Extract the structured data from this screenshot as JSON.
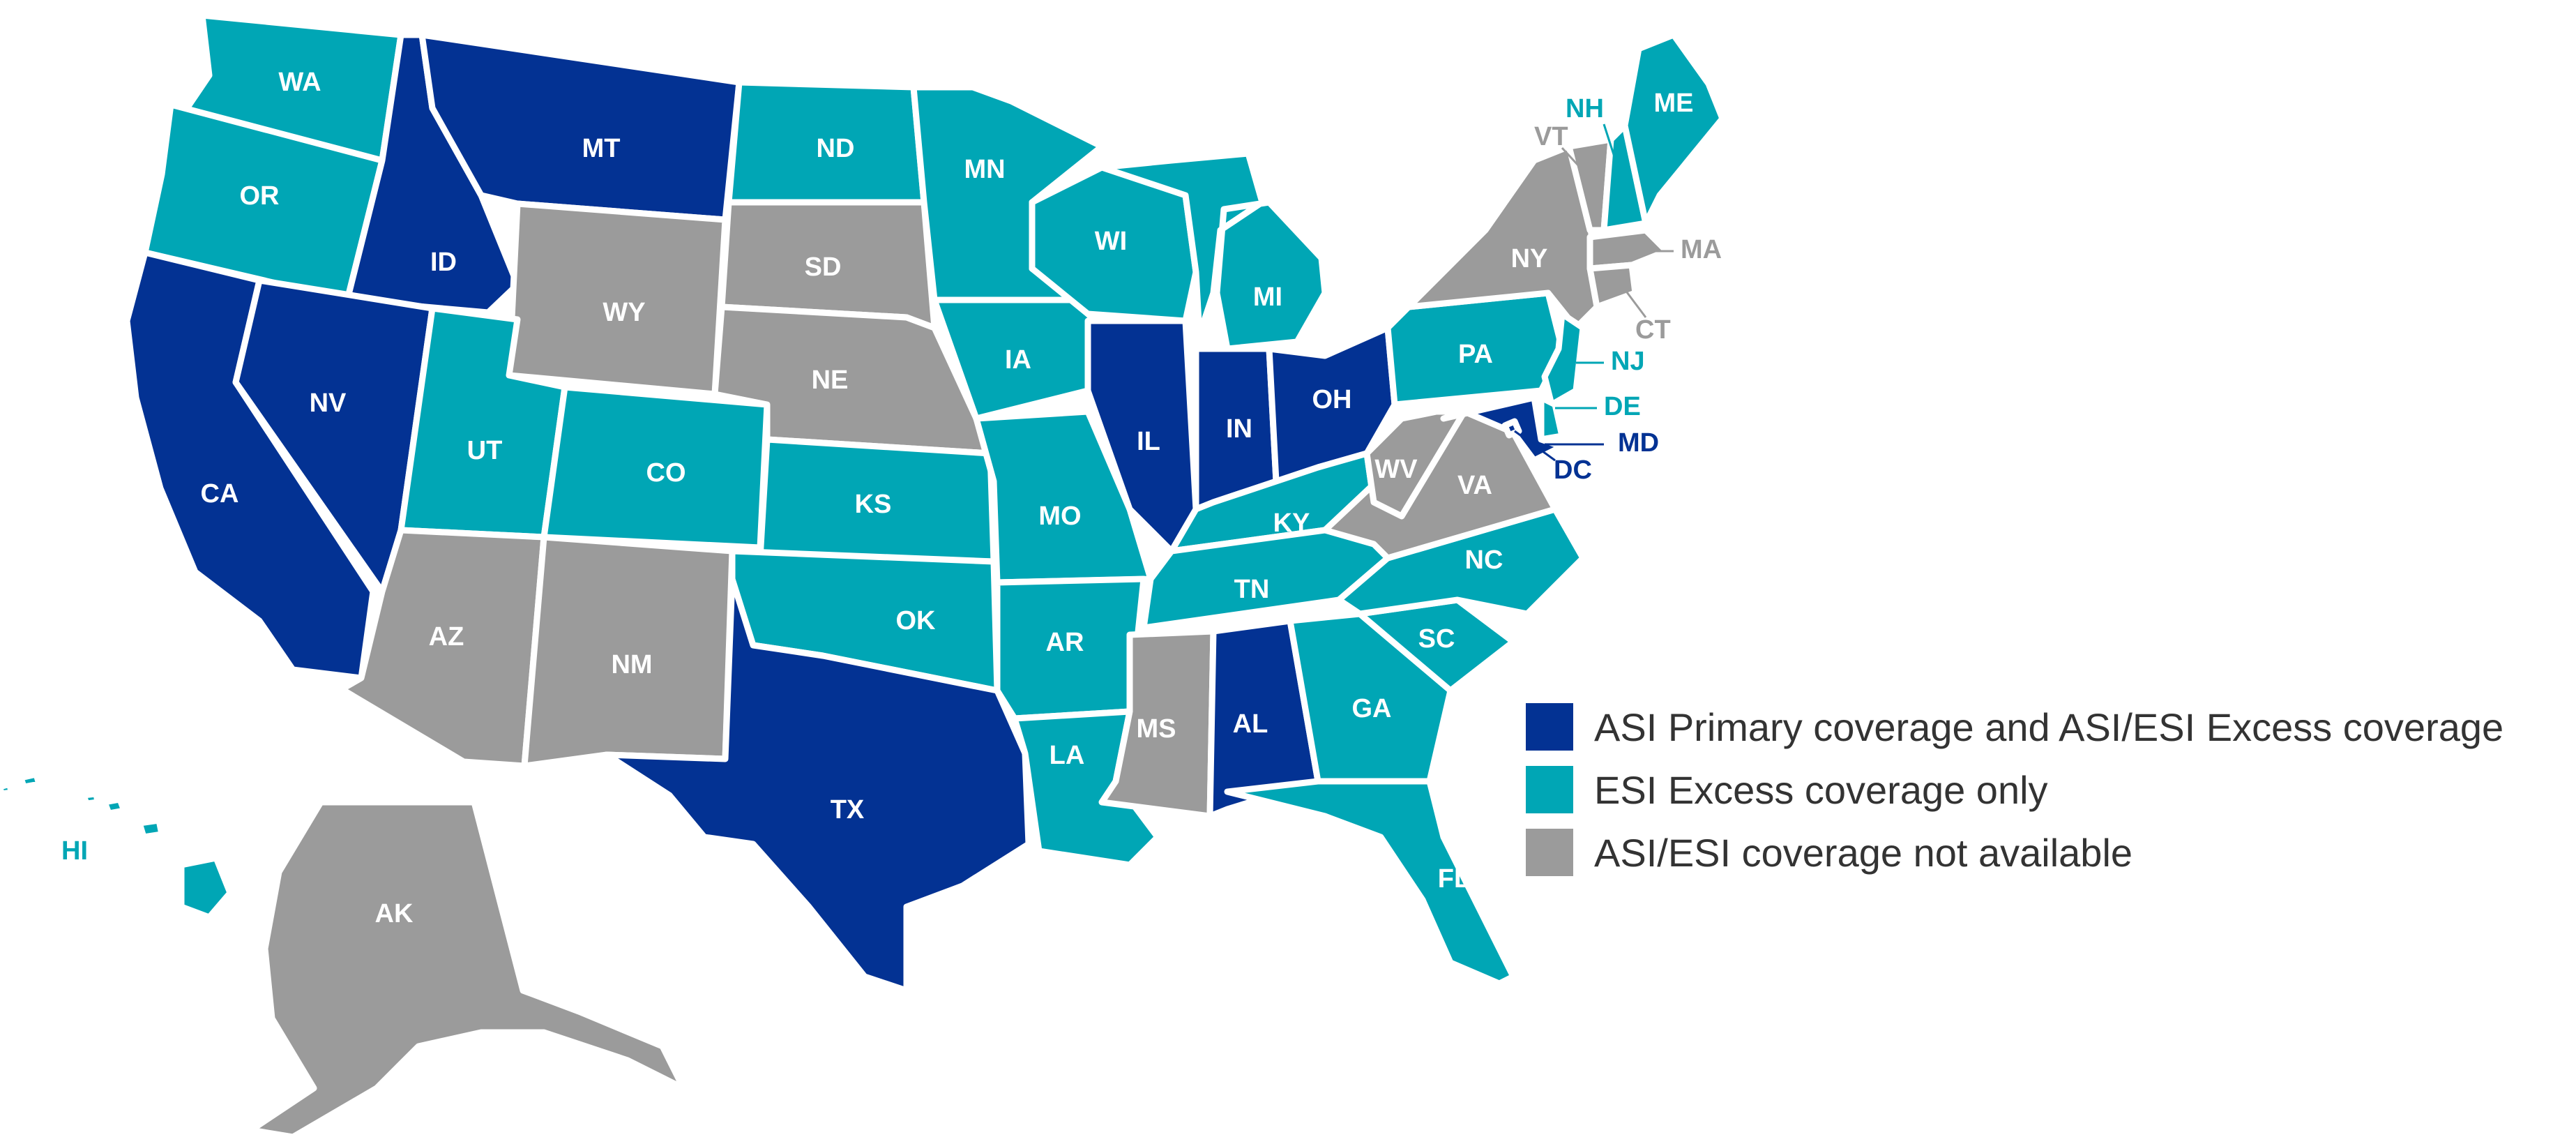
{
  "colors": {
    "primary": "#033293",
    "excess": "#00A6B5",
    "none": "#9B9B9B"
  },
  "legend": [
    {
      "key": "primary",
      "label": "ASI Primary coverage and ASI/ESI Excess coverage"
    },
    {
      "key": "excess",
      "label": "ESI Excess coverage only"
    },
    {
      "key": "none",
      "label": "ASI/ESI coverage not available"
    }
  ],
  "states": {
    "WA": {
      "label": "WA",
      "coverage": "excess"
    },
    "OR": {
      "label": "OR",
      "coverage": "excess"
    },
    "CA": {
      "label": "CA",
      "coverage": "primary"
    },
    "ID": {
      "label": "ID",
      "coverage": "primary"
    },
    "NV": {
      "label": "NV",
      "coverage": "primary"
    },
    "MT": {
      "label": "MT",
      "coverage": "primary"
    },
    "WY": {
      "label": "WY",
      "coverage": "none"
    },
    "UT": {
      "label": "UT",
      "coverage": "excess"
    },
    "AZ": {
      "label": "AZ",
      "coverage": "none"
    },
    "CO": {
      "label": "CO",
      "coverage": "excess"
    },
    "NM": {
      "label": "NM",
      "coverage": "none"
    },
    "ND": {
      "label": "ND",
      "coverage": "excess"
    },
    "SD": {
      "label": "SD",
      "coverage": "none"
    },
    "NE": {
      "label": "NE",
      "coverage": "none"
    },
    "KS": {
      "label": "KS",
      "coverage": "excess"
    },
    "OK": {
      "label": "OK",
      "coverage": "excess"
    },
    "TX": {
      "label": "TX",
      "coverage": "primary"
    },
    "MN": {
      "label": "MN",
      "coverage": "excess"
    },
    "IA": {
      "label": "IA",
      "coverage": "excess"
    },
    "MO": {
      "label": "MO",
      "coverage": "excess"
    },
    "AR": {
      "label": "AR",
      "coverage": "excess"
    },
    "LA": {
      "label": "LA",
      "coverage": "excess"
    },
    "WI": {
      "label": "WI",
      "coverage": "excess"
    },
    "IL": {
      "label": "IL",
      "coverage": "primary"
    },
    "MI": {
      "label": "MI",
      "coverage": "excess"
    },
    "IN": {
      "label": "IN",
      "coverage": "primary"
    },
    "OH": {
      "label": "OH",
      "coverage": "primary"
    },
    "KY": {
      "label": "KY",
      "coverage": "excess"
    },
    "TN": {
      "label": "TN",
      "coverage": "excess"
    },
    "MS": {
      "label": "MS",
      "coverage": "none"
    },
    "AL": {
      "label": "AL",
      "coverage": "primary"
    },
    "GA": {
      "label": "GA",
      "coverage": "excess"
    },
    "FL": {
      "label": "FL",
      "coverage": "excess"
    },
    "SC": {
      "label": "SC",
      "coverage": "excess"
    },
    "NC": {
      "label": "NC",
      "coverage": "excess"
    },
    "VA": {
      "label": "VA",
      "coverage": "none"
    },
    "WV": {
      "label": "WV",
      "coverage": "none"
    },
    "PA": {
      "label": "PA",
      "coverage": "excess"
    },
    "NY": {
      "label": "NY",
      "coverage": "none"
    },
    "VT": {
      "label": "VT",
      "coverage": "none"
    },
    "NH": {
      "label": "NH",
      "coverage": "excess"
    },
    "ME": {
      "label": "ME",
      "coverage": "excess"
    },
    "MA": {
      "label": "MA",
      "coverage": "none"
    },
    "CT": {
      "label": "CT",
      "coverage": "none"
    },
    "NJ": {
      "label": "NJ",
      "coverage": "excess"
    },
    "DE": {
      "label": "DE",
      "coverage": "excess"
    },
    "MD": {
      "label": "MD",
      "coverage": "primary"
    },
    "DC": {
      "label": "DC",
      "coverage": "primary"
    },
    "AK": {
      "label": "AK",
      "coverage": "none"
    },
    "HI": {
      "label": "HI",
      "coverage": "excess"
    }
  }
}
